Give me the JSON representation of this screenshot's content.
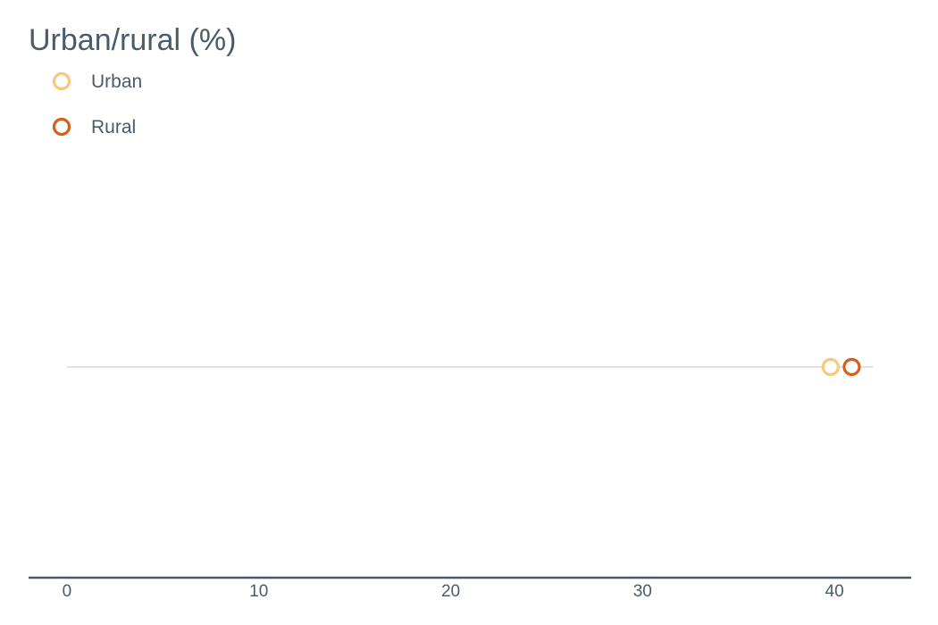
{
  "chart_data": {
    "type": "dot",
    "title": "Urban/rural (%)",
    "xlabel": "",
    "ylabel": "",
    "xlim": [
      -2,
      44
    ],
    "x_ticks": [
      0,
      10,
      20,
      30,
      40
    ],
    "grid": false,
    "legend_position": "top-left",
    "range_line": [
      0,
      42
    ],
    "series": [
      {
        "name": "Urban",
        "color": "#f9c77e",
        "value": 39.8
      },
      {
        "name": "Rural",
        "color": "#d4601a",
        "value": 40.9
      }
    ]
  },
  "colors": {
    "text": "#4a5c6a",
    "axis": "#4a5c6a",
    "range_line": "#dde2e8"
  }
}
